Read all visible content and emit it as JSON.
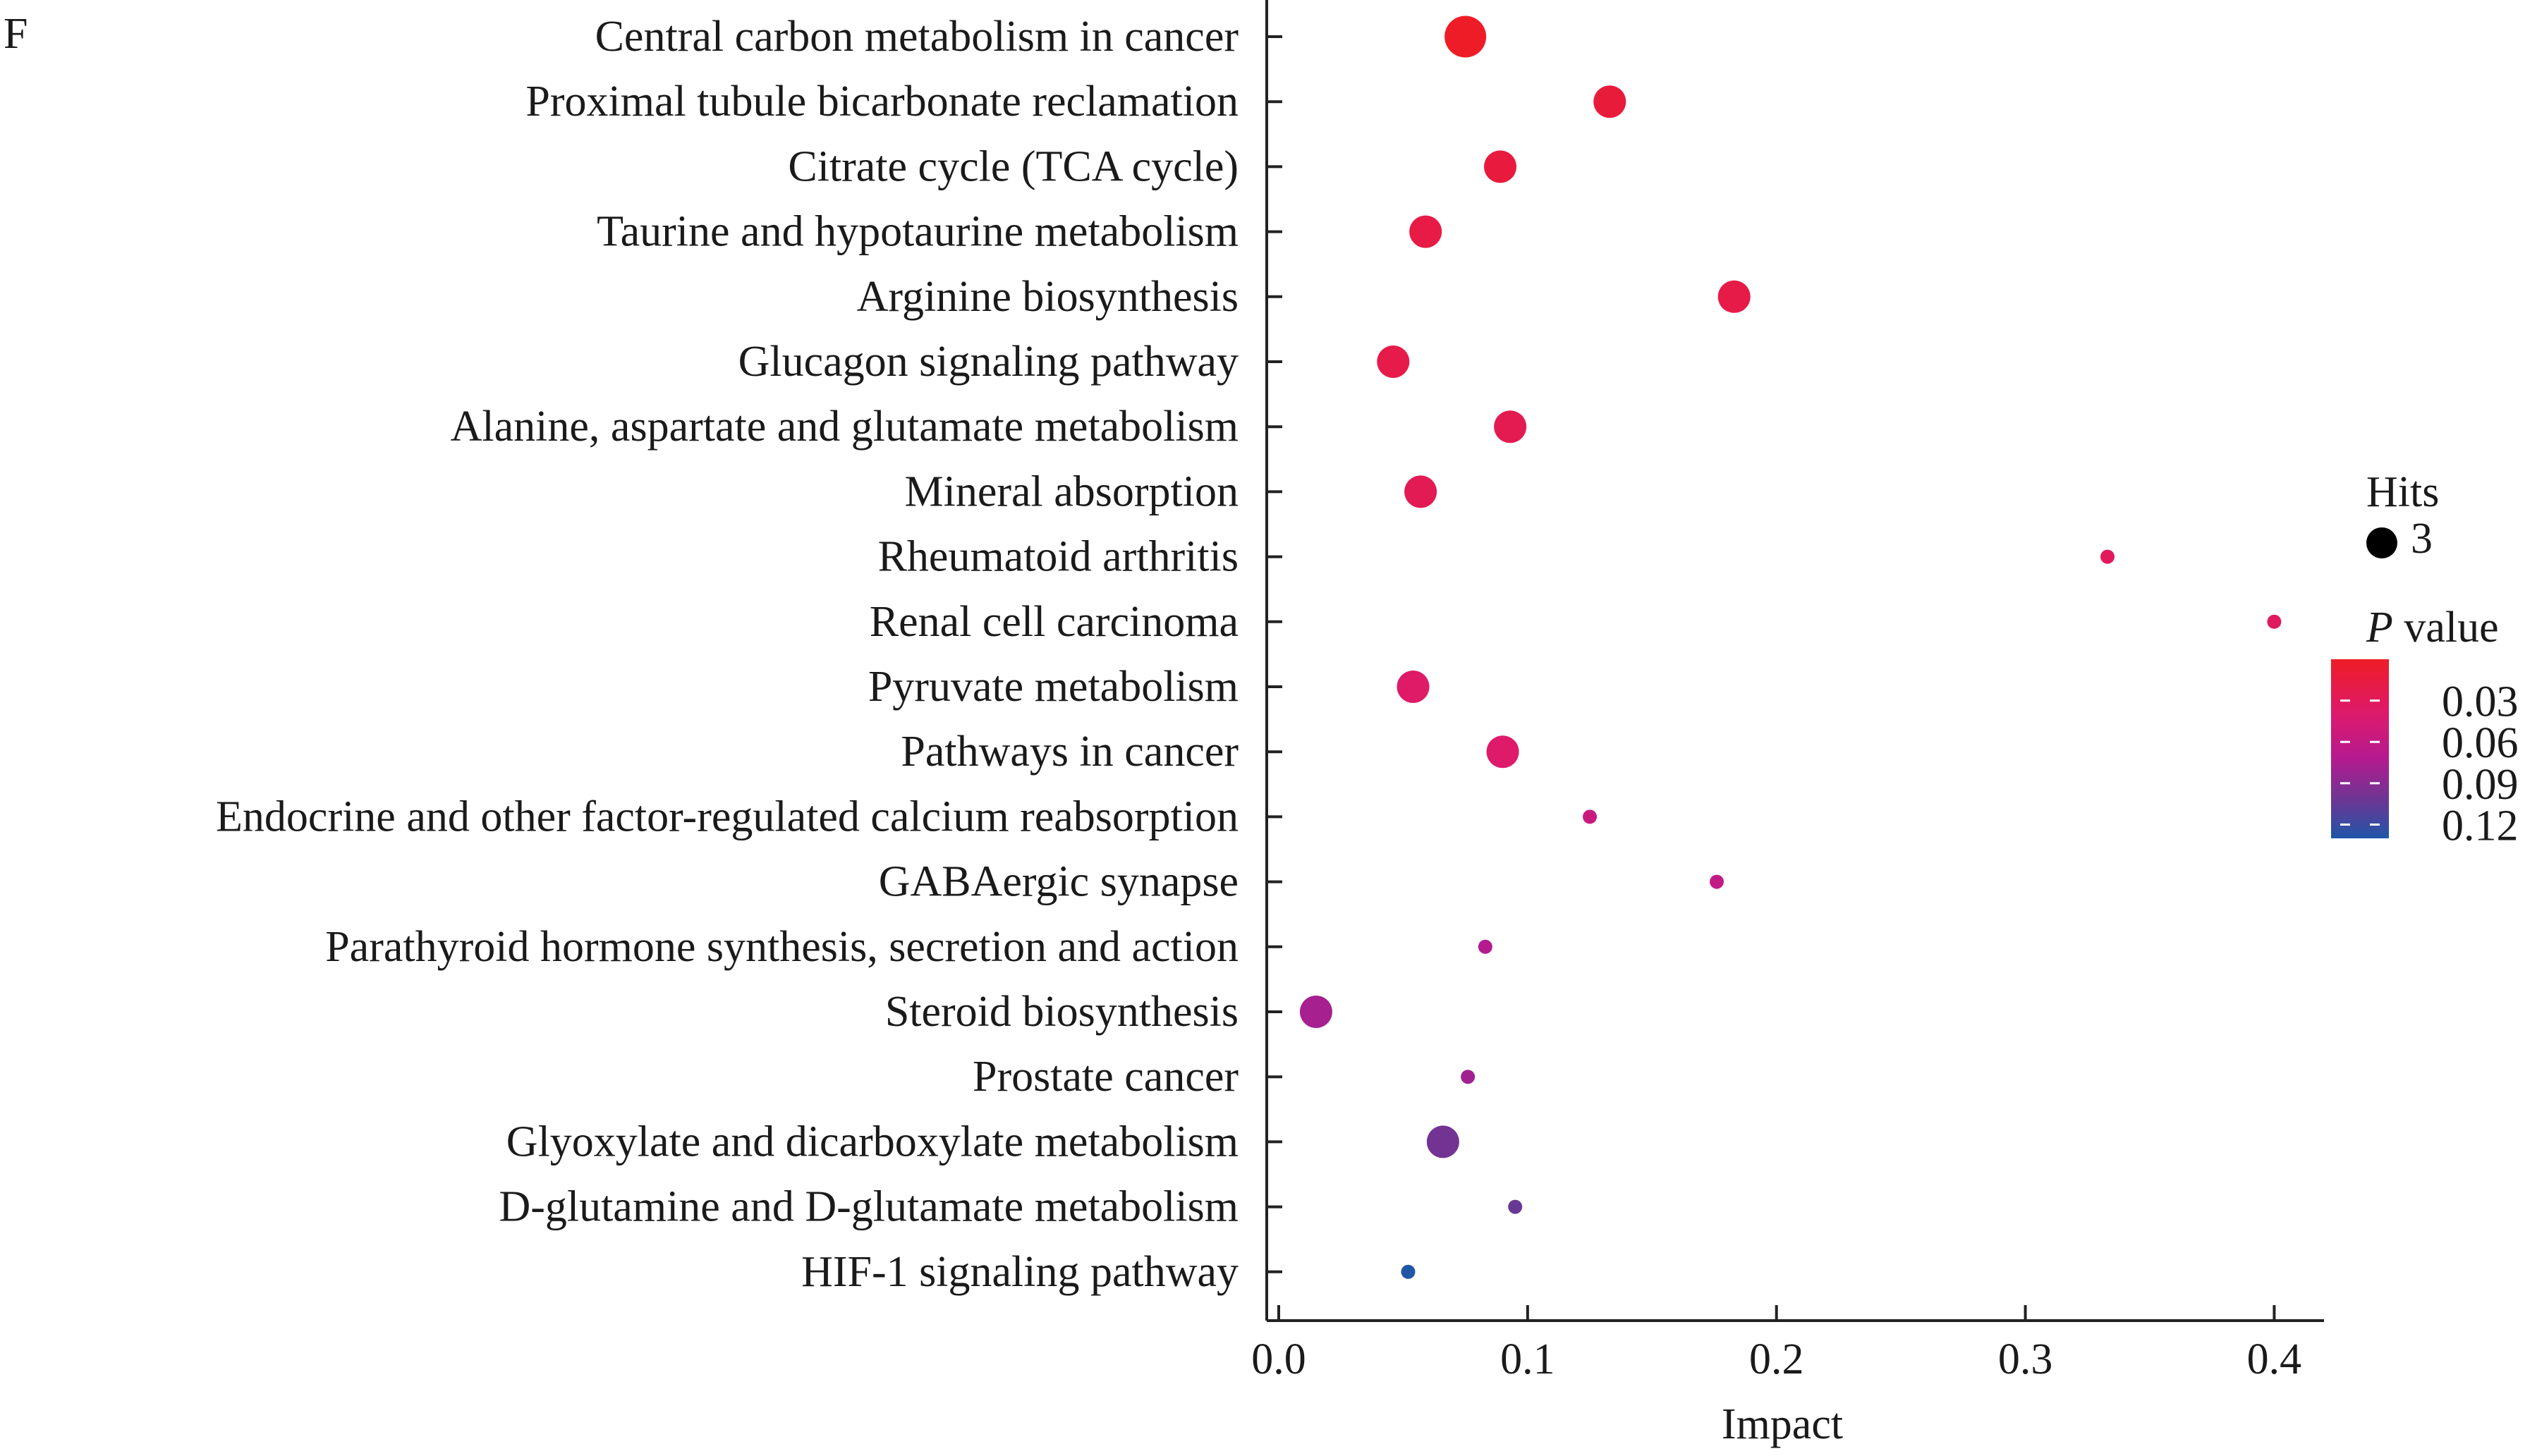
{
  "panel_label": "F",
  "chart_data": {
    "type": "scatter",
    "xlabel": "Impact",
    "xlim": [
      0.0,
      0.42
    ],
    "xticks": [
      0.0,
      0.1,
      0.2,
      0.3,
      0.4
    ],
    "xtick_labels": [
      "0.0",
      "0.1",
      "0.2",
      "0.3",
      "0.4"
    ],
    "categories": [
      "Central carbon metabolism in cancer",
      "Proximal tubule bicarbonate reclamation",
      "Citrate cycle (TCA cycle)",
      "Taurine and hypotaurine metabolism",
      "Arginine biosynthesis",
      "Glucagon signaling pathway",
      "Alanine, aspartate and glutamate metabolism",
      "Mineral absorption",
      "Rheumatoid arthritis",
      "Renal cell carcinoma",
      "Pyruvate metabolism",
      "Pathways in cancer",
      "Endocrine and other factor-regulated calcium reabsorption",
      "GABAergic synapse",
      "Parathyroid hormone synthesis, secretion and action",
      "Steroid biosynthesis",
      "Prostate cancer",
      "Glyoxylate and dicarboxylate metabolism",
      "D-glutamine and D-glutamate metabolism",
      "HIF-1 signaling pathway"
    ],
    "impact": [
      0.075,
      0.133,
      0.089,
      0.059,
      0.183,
      0.046,
      0.093,
      0.057,
      0.333,
      0.4,
      0.054,
      0.09,
      0.125,
      0.176,
      0.083,
      0.015,
      0.076,
      0.066,
      0.095,
      0.052
    ],
    "hits": [
      4,
      3,
      3,
      3,
      3,
      3,
      3,
      3,
      1,
      1,
      3,
      3,
      1,
      1,
      1,
      3,
      1,
      3,
      1,
      1
    ],
    "p_value": [
      0.001,
      0.01,
      0.012,
      0.015,
      0.016,
      0.017,
      0.02,
      0.022,
      0.025,
      0.027,
      0.03,
      0.032,
      0.05,
      0.055,
      0.065,
      0.072,
      0.075,
      0.095,
      0.1,
      0.13
    ],
    "size_legend": {
      "title": "Hits",
      "value": "3"
    },
    "color_legend": {
      "title_italic": "P",
      "title_rest": " value",
      "ticks": [
        0.03,
        0.06,
        0.09,
        0.12
      ],
      "tick_labels": [
        "0.03",
        "0.06",
        "0.09",
        "0.12"
      ],
      "range": [
        0.0,
        0.13
      ],
      "colors": [
        "#ee1c25",
        "#de1a6b",
        "#b51a8f",
        "#6e3593",
        "#1f56a8"
      ]
    }
  }
}
